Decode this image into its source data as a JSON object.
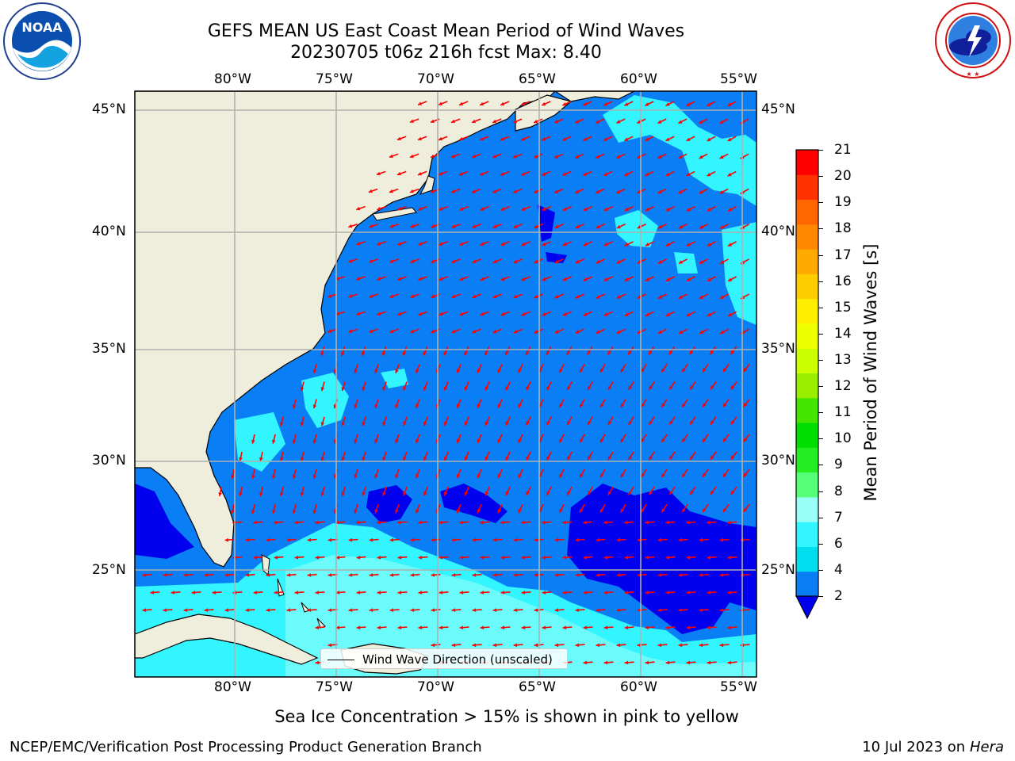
{
  "title": {
    "line1": "GEFS MEAN US East Coast Mean Period of Wind Waves",
    "line2": "20230705 t06z 216h fcst   Max: 8.40"
  },
  "axes": {
    "lon_labels": [
      "80°W",
      "75°W",
      "70°W",
      "65°W",
      "60°W",
      "55°W"
    ],
    "lat_labels": [
      "45°N",
      "40°N",
      "35°N",
      "30°N",
      "25°N"
    ]
  },
  "colorbar": {
    "label": "Mean Period of Wind Waves [s]",
    "ticks": [
      "21",
      "20",
      "19",
      "18",
      "17",
      "16",
      "15",
      "14",
      "13",
      "12",
      "11",
      "10",
      "9",
      "8",
      "7",
      "6",
      "4",
      "2"
    ],
    "colors_bottom_to_top": [
      "#0a7ef5",
      "#00ddee",
      "#33f5ff",
      "#99fff8",
      "#55ff77",
      "#22ee22",
      "#00dd00",
      "#44e600",
      "#99ee00",
      "#ccff00",
      "#eeff00",
      "#ffee00",
      "#ffcc00",
      "#ffaa00",
      "#ff8800",
      "#ff6600",
      "#ff3300",
      "#ff0000"
    ],
    "extend_color": "#0000ee"
  },
  "legend": {
    "text": "Wind Wave Direction (unscaled)"
  },
  "subtitle": "Sea Ice Concentration > 15% is shown in pink to yellow",
  "footer": {
    "left": "NCEP/EMC/Verification Post Processing Product Generation Branch",
    "right_date": "10 Jul 2023 on",
    "right_host": "Hera"
  },
  "logos": {
    "noaa": "NOAA",
    "noaa_ring": "NATIONAL OCEANIC AND ATMOSPHERIC ADMINISTRATION · U.S. DEPARTMENT OF COMMERCE",
    "nws_ring": "NATIONAL WEATHER SERVICE"
  },
  "colors": {
    "land": "#efeedd",
    "ocean_main": "#0a7ef5",
    "ocean_low": "#0000ee",
    "ocean_mid": "#33f5ff",
    "ocean_light": "#99fff8",
    "arrow": "#ff0000"
  }
}
